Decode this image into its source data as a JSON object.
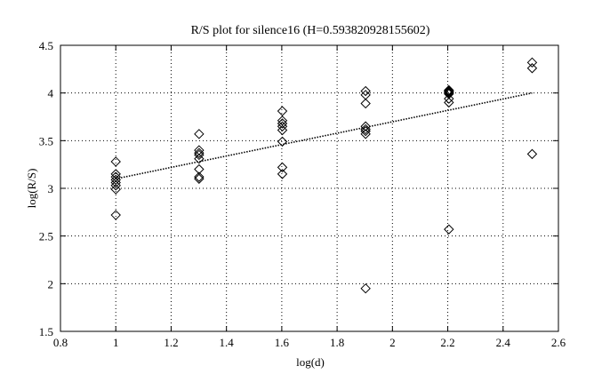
{
  "chart_data": {
    "type": "scatter",
    "title": "R/S plot for silence16 (H=0.593820928155602)",
    "xlabel": "log(d)",
    "ylabel": "log(R/S)",
    "xlim": [
      0.8,
      2.6
    ],
    "ylim": [
      1.5,
      4.5
    ],
    "xticks": [
      0.8,
      1,
      1.2,
      1.4,
      1.6,
      1.8,
      2,
      2.2,
      2.4,
      2.6
    ],
    "xtick_labels": [
      "0.8",
      "1",
      "1.2",
      "1.4",
      "1.6",
      "1.8",
      "2",
      "2.2",
      "2.4",
      "2.6"
    ],
    "yticks": [
      1.5,
      2,
      2.5,
      3,
      3.5,
      4,
      4.5
    ],
    "ytick_labels": [
      "1.5",
      "2",
      "2.5",
      "3",
      "3.5",
      "4",
      "4.5"
    ],
    "grid": true,
    "marker": "diamond",
    "points": [
      {
        "x": 1.0,
        "y": 3.28
      },
      {
        "x": 1.0,
        "y": 3.15
      },
      {
        "x": 1.0,
        "y": 3.12
      },
      {
        "x": 1.0,
        "y": 3.09
      },
      {
        "x": 1.0,
        "y": 3.06
      },
      {
        "x": 1.0,
        "y": 3.03
      },
      {
        "x": 1.0,
        "y": 2.99
      },
      {
        "x": 1.0,
        "y": 2.72
      },
      {
        "x": 1.301,
        "y": 3.57
      },
      {
        "x": 1.301,
        "y": 3.4
      },
      {
        "x": 1.301,
        "y": 3.37
      },
      {
        "x": 1.301,
        "y": 3.35
      },
      {
        "x": 1.301,
        "y": 3.31
      },
      {
        "x": 1.301,
        "y": 3.2
      },
      {
        "x": 1.301,
        "y": 3.12
      },
      {
        "x": 1.301,
        "y": 3.1
      },
      {
        "x": 1.602,
        "y": 3.81
      },
      {
        "x": 1.602,
        "y": 3.71
      },
      {
        "x": 1.602,
        "y": 3.68
      },
      {
        "x": 1.602,
        "y": 3.65
      },
      {
        "x": 1.602,
        "y": 3.61
      },
      {
        "x": 1.602,
        "y": 3.49
      },
      {
        "x": 1.602,
        "y": 3.22
      },
      {
        "x": 1.602,
        "y": 3.15
      },
      {
        "x": 1.903,
        "y": 4.02
      },
      {
        "x": 1.903,
        "y": 3.98
      },
      {
        "x": 1.903,
        "y": 3.89
      },
      {
        "x": 1.903,
        "y": 3.65
      },
      {
        "x": 1.903,
        "y": 3.62
      },
      {
        "x": 1.903,
        "y": 3.6
      },
      {
        "x": 1.903,
        "y": 3.57
      },
      {
        "x": 1.903,
        "y": 1.95
      },
      {
        "x": 2.204,
        "y": 4.03
      },
      {
        "x": 2.204,
        "y": 4.02
      },
      {
        "x": 2.204,
        "y": 4.01
      },
      {
        "x": 2.204,
        "y": 4.0
      },
      {
        "x": 2.204,
        "y": 3.99
      },
      {
        "x": 2.204,
        "y": 3.94
      },
      {
        "x": 2.204,
        "y": 3.9
      },
      {
        "x": 2.204,
        "y": 2.57
      },
      {
        "x": 2.505,
        "y": 4.32
      },
      {
        "x": 2.505,
        "y": 4.26
      },
      {
        "x": 2.505,
        "y": 3.36
      }
    ],
    "fit_line": {
      "x": [
        1.0,
        2.505
      ],
      "y": [
        3.1,
        4.0
      ]
    }
  }
}
